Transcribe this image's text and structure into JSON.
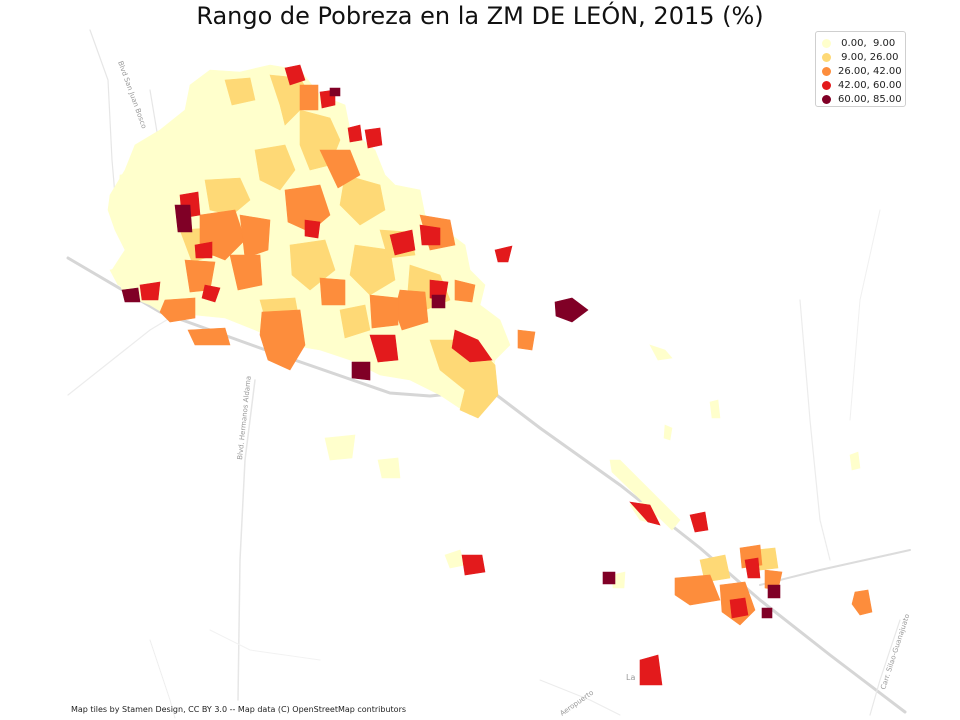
{
  "title": "Rango de Pobreza en la ZM DE LEÓN, 2015 (%)",
  "legend": {
    "entries": [
      {
        "label": " 0.00,  9.00",
        "color": "#ffffcc"
      },
      {
        "label": " 9.00, 26.00",
        "color": "#fed976"
      },
      {
        "label": "26.00, 42.00",
        "color": "#fd8d3c"
      },
      {
        "label": "42.00, 60.00",
        "color": "#e31a1c"
      },
      {
        "label": "60.00, 85.00",
        "color": "#800026"
      }
    ]
  },
  "road_labels": {
    "blvd_san_juan_bosco": "Blvd San Juan Bosco",
    "blvd_hermanos_aldama": "Blvd. Hermanos Aldama",
    "carr_silao_guanajuato": "Carr. Silao-Guanajuato",
    "la": "La",
    "aeropuerto": "Aeropuerto"
  },
  "attribution": "Map tiles by Stamen Design, CC BY 3.0 -- Map data (C) OpenStreetMap contributors"
}
